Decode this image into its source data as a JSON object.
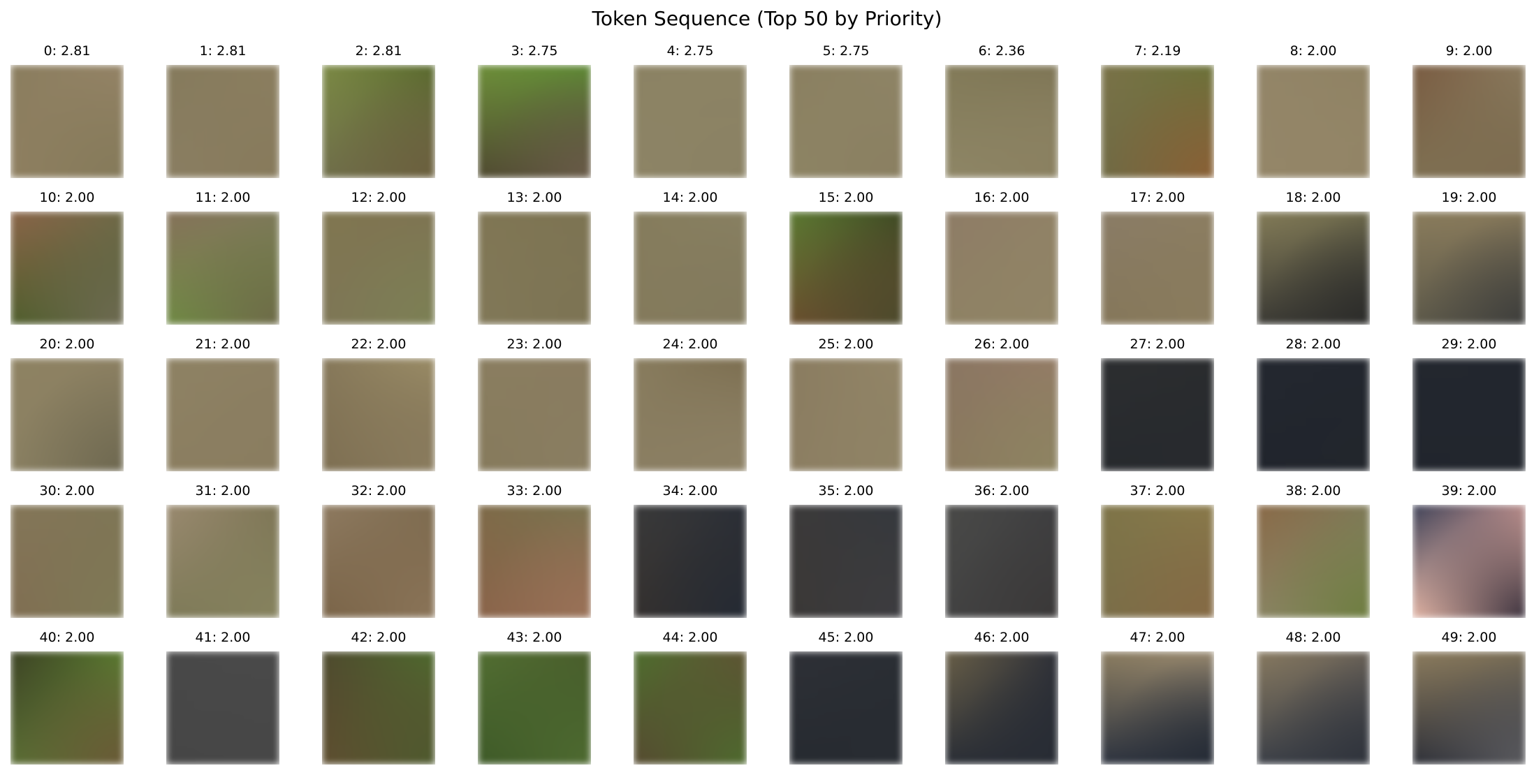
{
  "title": "Token Sequence (Top 50 by Priority)",
  "tokens": [
    {
      "label": "0: 2.81",
      "colors": [
        "#8a7d5e",
        "#948366",
        "#8e7f60",
        "#857a5a"
      ]
    },
    {
      "label": "1: 2.81",
      "colors": [
        "#857a5c",
        "#8b7e5f",
        "#8a7e62",
        "#877a5b"
      ]
    },
    {
      "label": "2: 2.81",
      "colors": [
        "#7c8a45",
        "#596a2d",
        "#6f6e4a",
        "#6b5f3d"
      ]
    },
    {
      "label": "3: 2.75",
      "colors": [
        "#6e8f3a",
        "#5e8a35",
        "#4f4a30",
        "#695b48"
      ]
    },
    {
      "label": "4: 2.75",
      "colors": [
        "#8b8263",
        "#8c8364",
        "#8d8466",
        "#8a8163"
      ]
    },
    {
      "label": "5: 2.75",
      "colors": [
        "#8a7f60",
        "#8e8466",
        "#8d8464",
        "#8a7f61"
      ]
    },
    {
      "label": "6: 2.36",
      "colors": [
        "#827a58",
        "#7e7555",
        "#8e8666",
        "#8a8060"
      ]
    },
    {
      "label": "7: 2.19",
      "colors": [
        "#7a7248",
        "#6b7238",
        "#6f6a44",
        "#8a6034"
      ]
    },
    {
      "label": "8: 2.00",
      "colors": [
        "#938568",
        "#8f8263",
        "#948668",
        "#928466"
      ]
    },
    {
      "label": "9: 2.00",
      "colors": [
        "#7a5c42",
        "#8a7a5e",
        "#7e7052",
        "#7d6c50"
      ]
    },
    {
      "label": "10: 2.00",
      "colors": [
        "#8a6448",
        "#6f6a48",
        "#4f5e2c",
        "#6e6a52"
      ]
    },
    {
      "label": "11: 2.00",
      "colors": [
        "#86725a",
        "#7e7a5a",
        "#6f8a44",
        "#6e6a48"
      ]
    },
    {
      "label": "12: 2.00",
      "colors": [
        "#807650",
        "#7e7452",
        "#7e7656",
        "#7c8054"
      ]
    },
    {
      "label": "13: 2.00",
      "colors": [
        "#807654",
        "#7c7352",
        "#817858",
        "#7c7353"
      ]
    },
    {
      "label": "14: 2.00",
      "colors": [
        "#857c5c",
        "#888062",
        "#847a5c",
        "#827a5d"
      ]
    },
    {
      "label": "15: 2.00",
      "colors": [
        "#5c7a32",
        "#3e4a24",
        "#6a4e2e",
        "#4c4a2c"
      ]
    },
    {
      "label": "16: 2.00",
      "colors": [
        "#8e7c66",
        "#918266",
        "#8e8264",
        "#918466"
      ]
    },
    {
      "label": "17: 2.00",
      "colors": [
        "#8a7c66",
        "#8c7e62",
        "#85775a",
        "#8a7c5e"
      ]
    },
    {
      "label": "18: 2.00",
      "colors": [
        "#847c58",
        "#6e6a4c",
        "#3c3b35",
        "#2c2c2a"
      ]
    },
    {
      "label": "19: 2.00",
      "colors": [
        "#8a7c5c",
        "#86785a",
        "#5e5a4a",
        "#3e3e3c"
      ]
    },
    {
      "label": "20: 2.00",
      "colors": [
        "#8e8262",
        "#8c8062",
        "#8a8062",
        "#6e6850"
      ]
    },
    {
      "label": "21: 2.00",
      "colors": [
        "#8e8264",
        "#8c7f62",
        "#8b7e60",
        "#8a7d60"
      ]
    },
    {
      "label": "22: 2.00",
      "colors": [
        "#86785a",
        "#9a8c66",
        "#7e6f52",
        "#8a7c5e"
      ]
    },
    {
      "label": "23: 2.00",
      "colors": [
        "#8a7e60",
        "#8a7c60",
        "#867a5c",
        "#8a7e62"
      ]
    },
    {
      "label": "24: 2.00",
      "colors": [
        "#887c5e",
        "#7c6e50",
        "#8a7e62",
        "#8c8064"
      ]
    },
    {
      "label": "25: 2.00",
      "colors": [
        "#8a7c60",
        "#938668",
        "#8c7e62",
        "#908466"
      ]
    },
    {
      "label": "26: 2.00",
      "colors": [
        "#8a7662",
        "#947c66",
        "#8a7a5e",
        "#8e8462"
      ]
    },
    {
      "label": "27: 2.00",
      "colors": [
        "#2c2e30",
        "#2a2c2e",
        "#26292d",
        "#282a2e"
      ]
    },
    {
      "label": "28: 2.00",
      "colors": [
        "#242830",
        "#22262e",
        "#20242c",
        "#22262c"
      ]
    },
    {
      "label": "29: 2.00",
      "colors": [
        "#23272e",
        "#22262e",
        "#21252d",
        "#22262d"
      ]
    },
    {
      "label": "30: 2.00",
      "colors": [
        "#847658",
        "#7e7656",
        "#806e52",
        "#7e7a56"
      ]
    },
    {
      "label": "31: 2.00",
      "colors": [
        "#9a8a70",
        "#7e7656",
        "#7e7a58",
        "#86825e"
      ]
    },
    {
      "label": "32: 2.00",
      "colors": [
        "#8e7a60",
        "#7e6c50",
        "#7a6448",
        "#8a7458"
      ]
    },
    {
      "label": "33: 2.00",
      "colors": [
        "#7e6a48",
        "#7a7450",
        "#8a644a",
        "#9a7258"
      ]
    },
    {
      "label": "34: 2.00",
      "colors": [
        "#3a3a3a",
        "#2a2e36",
        "#34302e",
        "#242a34"
      ]
    },
    {
      "label": "35: 2.00",
      "colors": [
        "#3c3a3a",
        "#34383e",
        "#3a3836",
        "#3c3c40"
      ]
    },
    {
      "label": "36: 2.00",
      "colors": [
        "#4a4a48",
        "#3e3e40",
        "#424242",
        "#3a3838"
      ]
    },
    {
      "label": "37: 2.00",
      "colors": [
        "#7e7448",
        "#8a7a4a",
        "#7a6e48",
        "#866a44"
      ]
    },
    {
      "label": "38: 2.00",
      "colors": [
        "#8a6a48",
        "#7e7a58",
        "#8a8464",
        "#6e7e40"
      ]
    },
    {
      "label": "39: 2.00",
      "colors": [
        "#3e4258",
        "#b88c8a",
        "#e2b4a4",
        "#3e3440"
      ]
    },
    {
      "label": "40: 2.00",
      "colors": [
        "#3c4224",
        "#5a7a30",
        "#5a6e34",
        "#6a5a36"
      ]
    },
    {
      "label": "41: 2.00",
      "colors": [
        "#484848",
        "#4a4a4a",
        "#464646",
        "#474747"
      ]
    },
    {
      "label": "42: 2.00",
      "colors": [
        "#4e4a2e",
        "#4e6a2e",
        "#5e4e30",
        "#4e5a2e"
      ]
    },
    {
      "label": "43: 2.00",
      "colors": [
        "#526e32",
        "#4a5e2c",
        "#3e5a28",
        "#4e6a30"
      ]
    },
    {
      "label": "44: 2.00",
      "colors": [
        "#4e6e2e",
        "#5e5434",
        "#564a30",
        "#4e6a2e"
      ]
    },
    {
      "label": "45: 2.00",
      "colors": [
        "#2e3036",
        "#2a2e34",
        "#262a30",
        "#282c32"
      ]
    },
    {
      "label": "46: 2.00",
      "colors": [
        "#6a6048",
        "#2e3038",
        "#2a2e36",
        "#282c34"
      ]
    },
    {
      "label": "47: 2.00",
      "colors": [
        "#8a7c60",
        "#9a8a70",
        "#2e3440",
        "#262c36"
      ]
    },
    {
      "label": "48: 2.00",
      "colors": [
        "#887a60",
        "#6a6258",
        "#3c4048",
        "#30343c"
      ]
    },
    {
      "label": "49: 2.00",
      "colors": [
        "#8c7c5e",
        "#7a6e56",
        "#2e3038",
        "#5a5a5e"
      ]
    }
  ]
}
